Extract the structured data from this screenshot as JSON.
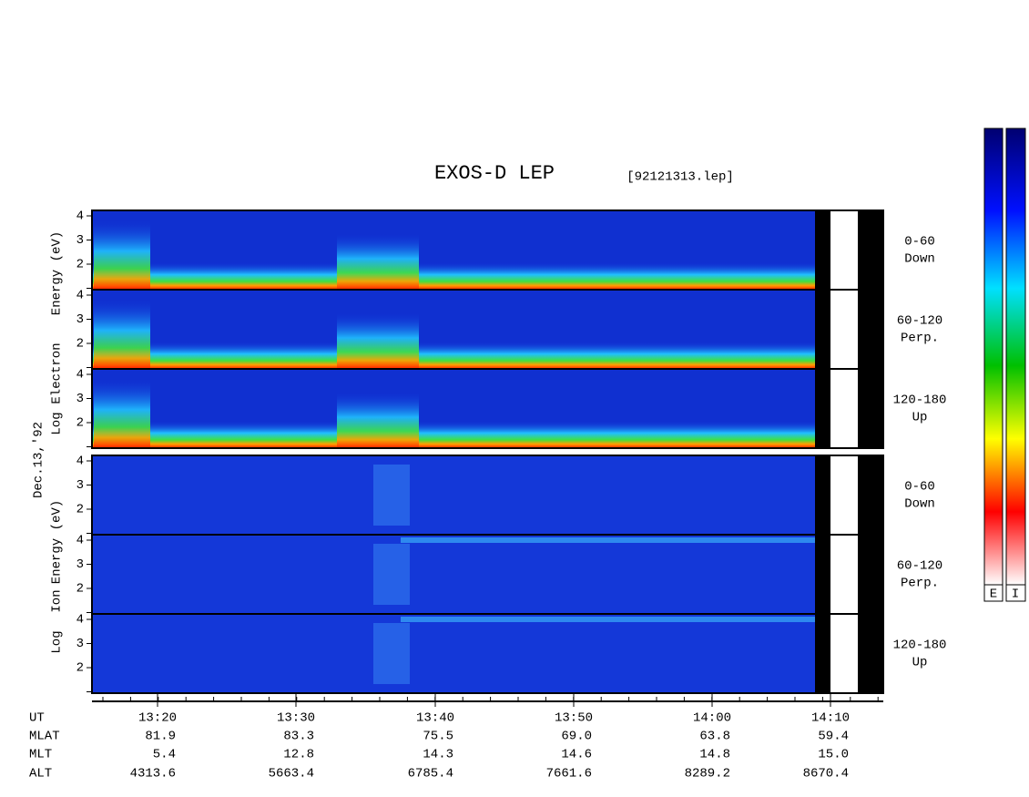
{
  "title": "EXOS-D LEP",
  "file": "[92121313.lep]",
  "date": "Dec.13,'92",
  "electron": {
    "axis_label": [
      "Log",
      "Electron",
      "Energy (eV)"
    ],
    "panels": [
      {
        "range": "0-60",
        "direction": "Down",
        "yticks": [
          2,
          3,
          4
        ]
      },
      {
        "range": "60-120",
        "direction": "Perp.",
        "yticks": [
          2,
          3,
          4
        ]
      },
      {
        "range": "120-180",
        "direction": "Up",
        "yticks": [
          2,
          3,
          4
        ]
      }
    ]
  },
  "ion": {
    "axis_label": [
      "Log",
      "Ion",
      "Energy (eV)"
    ],
    "panels": [
      {
        "range": "0-60",
        "direction": "Down",
        "yticks": [
          2,
          3,
          4
        ]
      },
      {
        "range": "60-120",
        "direction": "Perp.",
        "yticks": [
          2,
          3,
          4
        ]
      },
      {
        "range": "120-180",
        "direction": "Up",
        "yticks": [
          2,
          3,
          4
        ]
      }
    ]
  },
  "time_axis": {
    "rows": [
      {
        "label": "UT",
        "values": [
          "13:20",
          "13:30",
          "13:40",
          "13:50",
          "14:00",
          "14:10"
        ]
      },
      {
        "label": "MLAT",
        "values": [
          "81.9",
          "83.3",
          "75.5",
          "69.0",
          "63.8",
          "59.4"
        ]
      },
      {
        "label": "MLT",
        "values": [
          "5.4",
          "12.8",
          "14.3",
          "14.6",
          "14.8",
          "15.0"
        ]
      },
      {
        "label": "ALT",
        "values": [
          "4313.6",
          "5663.4",
          "6785.4",
          "7661.6",
          "8289.2",
          "8670.4"
        ]
      }
    ]
  },
  "colorbars": [
    "E",
    "I"
  ]
}
